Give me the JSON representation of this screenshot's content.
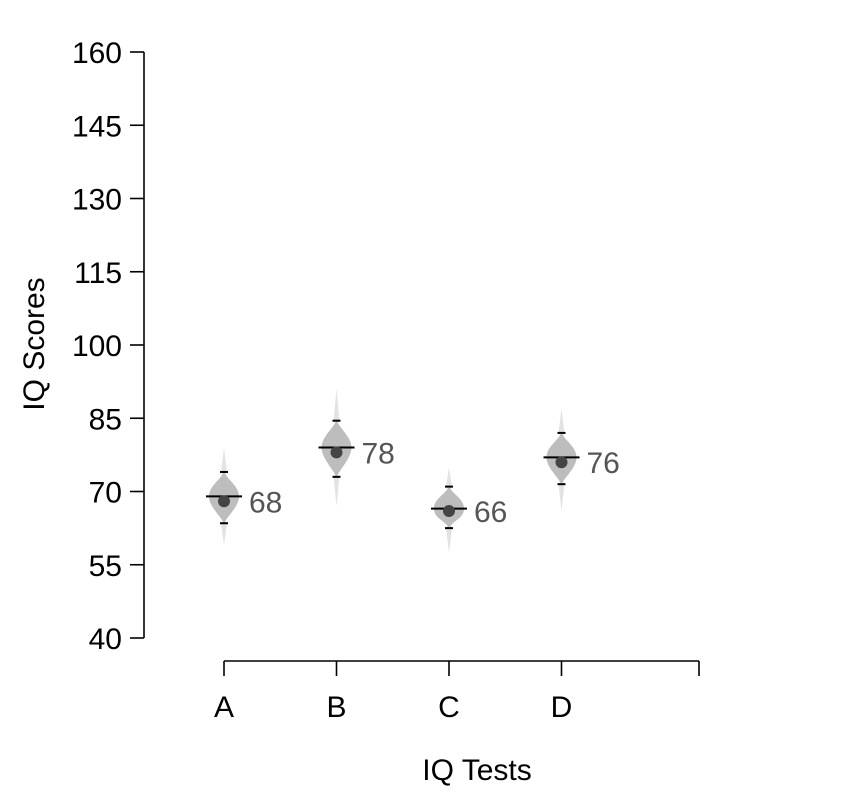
{
  "chart_data": {
    "type": "scatter",
    "title": "",
    "xlabel": "IQ Tests",
    "ylabel": "IQ Scores",
    "ylim": [
      40,
      160
    ],
    "yticks": [
      40,
      55,
      70,
      85,
      100,
      115,
      130,
      145,
      160
    ],
    "categories": [
      "A",
      "B",
      "C",
      "D"
    ],
    "series": [
      {
        "values": [
          68,
          78,
          66,
          76
        ],
        "labels": [
          "68",
          "78",
          "66",
          "76"
        ],
        "median": [
          69,
          79,
          66.5,
          77
        ],
        "hdi_low": [
          63.5,
          73,
          62.5,
          71.5
        ],
        "hdi_high": [
          74,
          84.5,
          71,
          82
        ],
        "tail_low": [
          59,
          67,
          57.5,
          66
        ],
        "tail_high": [
          79,
          91,
          75,
          87
        ]
      }
    ],
    "grid": false,
    "legend": "none",
    "colors": {
      "density": "#bdbdbd",
      "density_tail": "#e3e3e3",
      "point": "#444444",
      "label": "#555555",
      "axis": "#000000"
    }
  }
}
